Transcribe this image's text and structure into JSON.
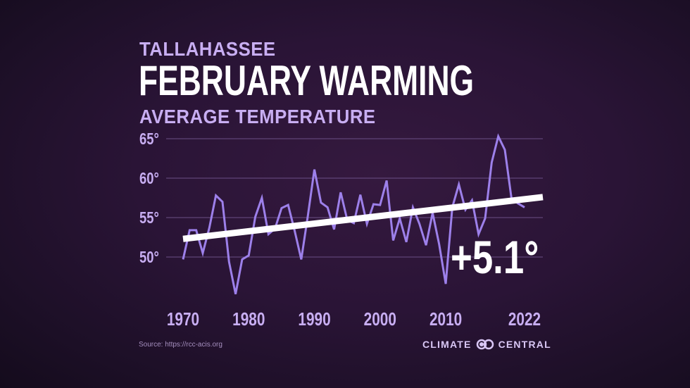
{
  "header": {
    "city": "TALLAHASSEE",
    "title": "FEBRUARY WARMING",
    "subtitle": "AVERAGE TEMPERATURE"
  },
  "footer": {
    "source": "Source: https://rcc-acis.org",
    "logo_left": "CLIMATE",
    "logo_right": "CENTRAL",
    "logo_icon": "linked-circles-icon"
  },
  "colors": {
    "line": "#9d80ea",
    "trend": "#ffffff",
    "label": "#c8aef2",
    "grid": "#6b4f86"
  },
  "chart_data": {
    "type": "line",
    "title": "AVERAGE TEMPERATURE",
    "ylim": [
      45,
      65
    ],
    "xlim": [
      1970,
      2022
    ],
    "y_ticks": [
      {
        "value": 65,
        "label": "65°"
      },
      {
        "value": 60,
        "label": "60°"
      },
      {
        "value": 55,
        "label": "55°"
      },
      {
        "value": 50,
        "label": "50°"
      }
    ],
    "x_ticks": [
      {
        "value": 1970,
        "label": "1970"
      },
      {
        "value": 1980,
        "label": "1980"
      },
      {
        "value": 1990,
        "label": "1990"
      },
      {
        "value": 2000,
        "label": "2000"
      },
      {
        "value": 2010,
        "label": "2010"
      },
      {
        "value": 2022,
        "label": "2022"
      }
    ],
    "grid": true,
    "x_start": 1970,
    "values": [
      49.7,
      53.4,
      53.4,
      50.5,
      53.7,
      57.8,
      57.0,
      49.4,
      45.3,
      49.7,
      50.2,
      55.1,
      57.5,
      52.9,
      53.6,
      56.2,
      56.6,
      53.3,
      49.7,
      55.2,
      61.1,
      56.9,
      56.3,
      53.5,
      58.2,
      54.7,
      54.3,
      57.9,
      54.2,
      56.7,
      56.6,
      59.7,
      52.1,
      54.9,
      51.9,
      56.3,
      54.2,
      51.5,
      55.6,
      51.6,
      46.6,
      56.3,
      59.2,
      56.0,
      57.2,
      52.9,
      54.9,
      62.0,
      65.3,
      63.6,
      57.5,
      56.8,
      56.3
    ],
    "trend": {
      "start": [
        1970,
        52.3
      ],
      "end": [
        2022,
        57.4
      ]
    },
    "annotation": "+5.1°"
  }
}
